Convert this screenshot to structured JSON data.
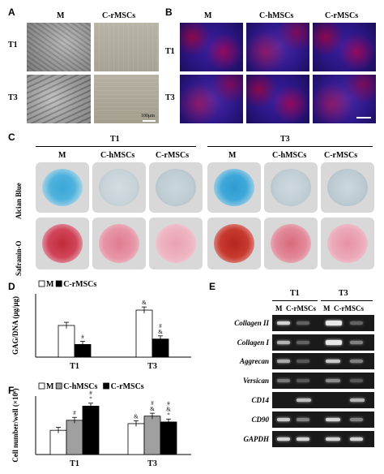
{
  "panels": {
    "a": "A",
    "b": "B",
    "c": "C",
    "d": "D",
    "e": "E",
    "f": "F"
  },
  "panel_a": {
    "cols": [
      "M",
      "C-rMSCs"
    ],
    "rows": [
      "T1",
      "T3"
    ],
    "scale": "100μm"
  },
  "panel_b": {
    "cols": [
      "M",
      "C-hMSCs",
      "C-rMSCs"
    ],
    "rows": [
      "T1",
      "T3"
    ]
  },
  "panel_c": {
    "groups": [
      "T1",
      "T3"
    ],
    "cols": [
      "M",
      "C-hMSCs",
      "C-rMSCs",
      "M",
      "C-hMSCs",
      "C-rMSCs"
    ],
    "rows": [
      "Alcian Blue",
      "Safranin-O"
    ]
  },
  "panel_e": {
    "groups": [
      "T1",
      "T3"
    ],
    "cols": [
      "M",
      "C-rMSCs",
      "M",
      "C-rMSCs"
    ],
    "genes": [
      "Collagen II",
      "Collagen I",
      "Aggrecan",
      "Versican",
      "CD14",
      "CD90",
      "GAPDH"
    ]
  },
  "colors": {
    "white_bar": "#ffffff",
    "black_bar": "#000000",
    "gray_bar": "#a0a0a0"
  },
  "chart_data": [
    {
      "type": "bar",
      "ylabel": "GAG/DNA (μg/μg)",
      "categories": [
        "T1",
        "T3"
      ],
      "ylim": [
        0,
        3.5
      ],
      "series": [
        {
          "name": "M",
          "values": [
            1.75,
            2.6
          ]
        },
        {
          "name": "C-rMSCs",
          "values": [
            0.7,
            1.0
          ]
        }
      ],
      "annotations": [
        {
          "series": "C-rMSCs",
          "category": "T1",
          "text": "#"
        },
        {
          "series": "M",
          "category": "T3",
          "text": "&"
        },
        {
          "series": "C-rMSCs",
          "category": "T3",
          "text": "#\n&"
        }
      ]
    },
    {
      "type": "bar",
      "ylabel": "Cell number/well (×10⁶)",
      "categories": [
        "T1",
        "T3"
      ],
      "ylim": [
        0,
        7
      ],
      "series": [
        {
          "name": "M",
          "values": [
            2.9,
            3.7
          ]
        },
        {
          "name": "C-hMSCs",
          "values": [
            4.1,
            4.6
          ]
        },
        {
          "name": "C-rMSCs",
          "values": [
            5.8,
            3.9
          ]
        }
      ],
      "annotations": [
        {
          "series": "C-hMSCs",
          "category": "T1",
          "text": "#"
        },
        {
          "series": "C-rMSCs",
          "category": "T1",
          "text": "#\n*"
        },
        {
          "series": "M",
          "category": "T3",
          "text": "&"
        },
        {
          "series": "C-hMSCs",
          "category": "T3",
          "text": "#\n&"
        },
        {
          "series": "C-rMSCs",
          "category": "T3",
          "text": "#\n&\n*"
        }
      ]
    }
  ]
}
